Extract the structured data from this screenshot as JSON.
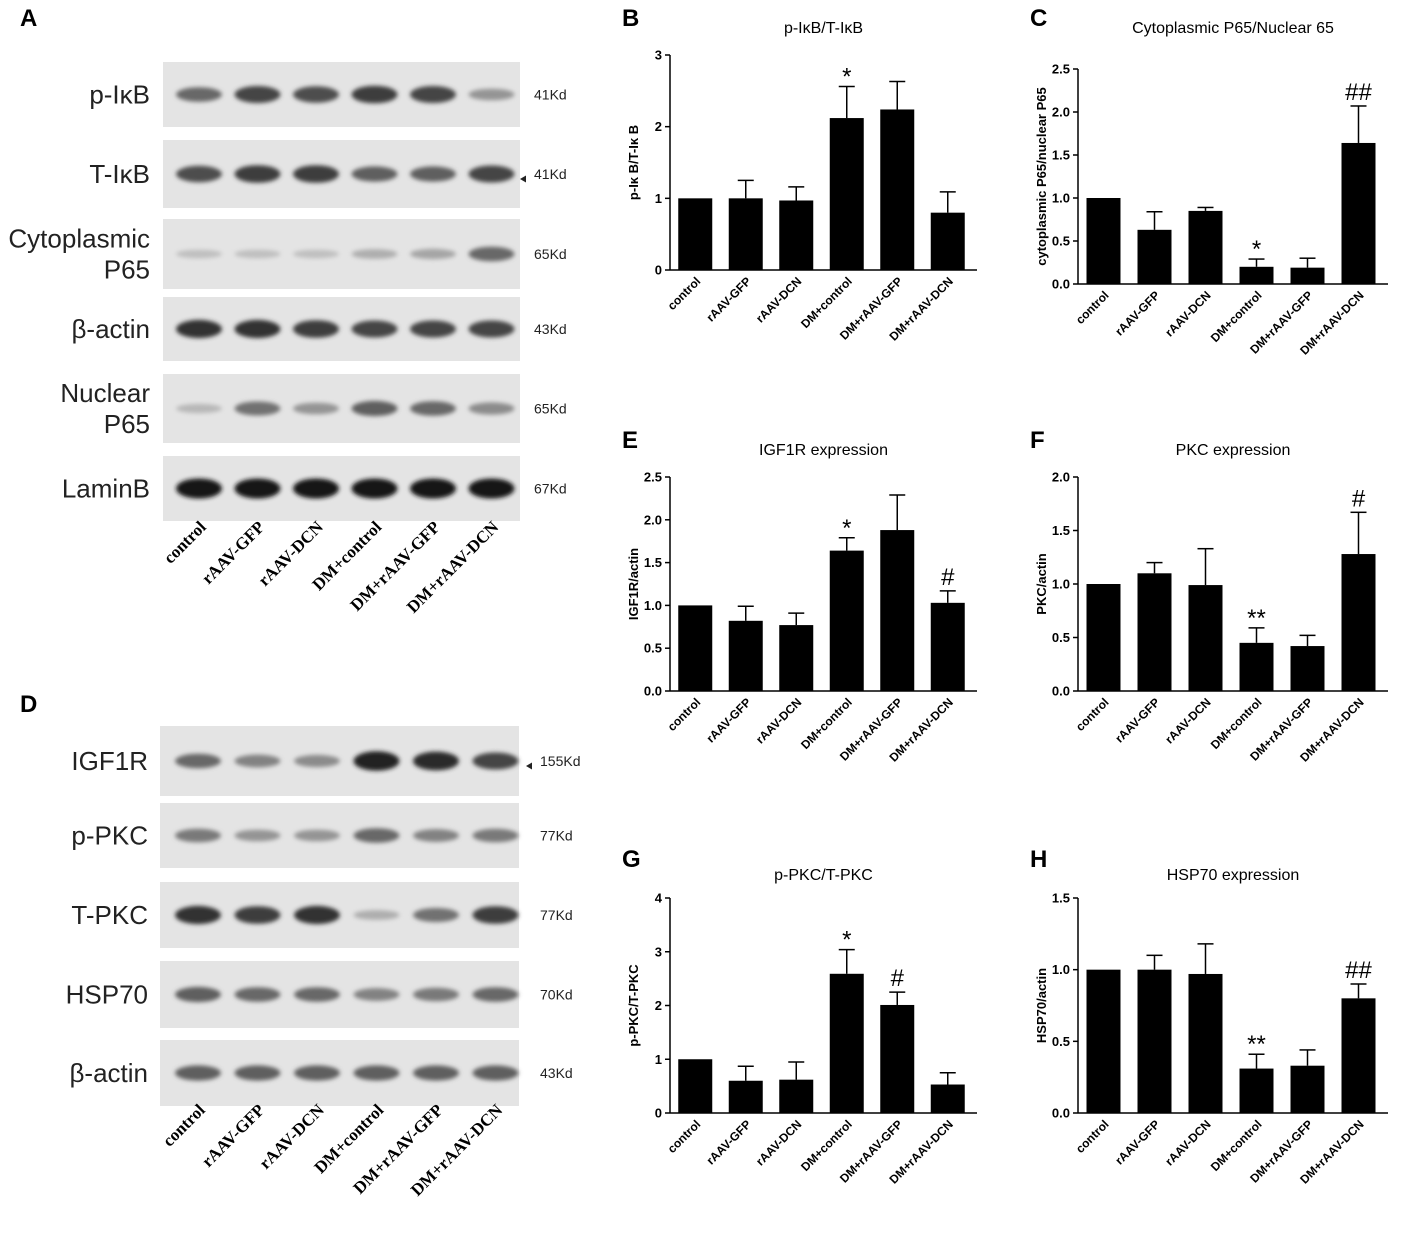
{
  "panel_letters": [
    "A",
    "B",
    "C",
    "D",
    "E",
    "F",
    "G",
    "H"
  ],
  "blots": [
    {
      "panel": "A",
      "lanes": [
        "control",
        "rAAV-GFP",
        "rAAV-DCN",
        "DM+control",
        "DM+rAAV-GFP",
        "DM+rAAV-DCN"
      ],
      "rows": [
        {
          "label_lines": [
            "p-IκB"
          ],
          "kd": "41Kd",
          "arrow": false,
          "bands": [
            0.55,
            0.75,
            0.7,
            0.8,
            0.75,
            0.3
          ]
        },
        {
          "label_lines": [
            "T-IκB"
          ],
          "kd": "41Kd",
          "arrow": true,
          "bands": [
            0.7,
            0.8,
            0.8,
            0.6,
            0.6,
            0.75
          ]
        },
        {
          "label_lines": [
            "Cytoplasmic",
            "P65"
          ],
          "kd": "65Kd",
          "arrow": false,
          "bands": [
            0.05,
            0.05,
            0.05,
            0.15,
            0.2,
            0.55
          ]
        },
        {
          "label_lines": [
            "β-actin"
          ],
          "kd": "43Kd",
          "arrow": false,
          "bands": [
            0.85,
            0.85,
            0.8,
            0.75,
            0.75,
            0.75
          ]
        },
        {
          "label_lines": [
            "Nuclear",
            "P65"
          ],
          "kd": "65Kd",
          "arrow": false,
          "bands": [
            0.1,
            0.5,
            0.3,
            0.6,
            0.55,
            0.35
          ]
        },
        {
          "label_lines": [
            "LaminB"
          ],
          "kd": "67Kd",
          "arrow": false,
          "bands": [
            1.0,
            1.0,
            1.0,
            1.0,
            1.0,
            1.0
          ]
        }
      ]
    },
    {
      "panel": "D",
      "lanes": [
        "control",
        "rAAV-GFP",
        "rAAV-DCN",
        "DM+control",
        "DM+rAAV-GFP",
        "DM+rAAV-DCN"
      ],
      "rows": [
        {
          "label_lines": [
            "IGF1R"
          ],
          "kd": "155Kd",
          "arrow": true,
          "bands": [
            0.55,
            0.4,
            0.35,
            0.95,
            0.9,
            0.75
          ]
        },
        {
          "label_lines": [
            "p-PKC"
          ],
          "kd": "77Kd",
          "arrow": false,
          "bands": [
            0.45,
            0.3,
            0.3,
            0.55,
            0.4,
            0.45
          ]
        },
        {
          "label_lines": [
            "T-PKC"
          ],
          "kd": "77Kd",
          "arrow": false,
          "bands": [
            0.85,
            0.8,
            0.85,
            0.15,
            0.5,
            0.8
          ]
        },
        {
          "label_lines": [
            "HSP70"
          ],
          "kd": "70Kd",
          "arrow": false,
          "bands": [
            0.6,
            0.55,
            0.55,
            0.4,
            0.45,
            0.55
          ]
        },
        {
          "label_lines": [
            "β-actin"
          ],
          "kd": "43Kd",
          "arrow": false,
          "bands": [
            0.6,
            0.6,
            0.6,
            0.6,
            0.6,
            0.6
          ]
        }
      ]
    }
  ],
  "chart_data": [
    {
      "panel": "B",
      "type": "bar",
      "title": "p-IκB/T-IκB",
      "ylabel": "p-Iκ B/T-Iκ B",
      "categories": [
        "control",
        "rAAV-GFP",
        "rAAV-DCN",
        "DM+control",
        "DM+rAAV-GFP",
        "DM+rAAV-DCN"
      ],
      "values": [
        1.0,
        1.0,
        0.97,
        2.12,
        2.24,
        0.8
      ],
      "errors": [
        0,
        0.25,
        0.19,
        0.44,
        0.39,
        0.29
      ],
      "annotations": [
        "",
        "",
        "",
        "*",
        "",
        ""
      ],
      "ylim": [
        0,
        3
      ],
      "yticks": [
        0,
        1,
        2,
        3
      ],
      "ytick_labels": [
        "0",
        "1",
        "2",
        "3"
      ]
    },
    {
      "panel": "C",
      "type": "bar",
      "title": "Cytoplasmic P65/Nuclear 65",
      "ylabel": "cytoplasmic P65/nuclear P65",
      "categories": [
        "control",
        "rAAV-GFP",
        "rAAV-DCN",
        "DM+control",
        "DM+rAAV-GFP",
        "DM+rAAV-DCN"
      ],
      "values": [
        1.0,
        0.63,
        0.85,
        0.2,
        0.19,
        1.64
      ],
      "errors": [
        0,
        0.21,
        0.04,
        0.09,
        0.11,
        0.43
      ],
      "annotations": [
        "",
        "",
        "",
        "*",
        "",
        "##"
      ],
      "ylim": [
        0,
        2.5
      ],
      "yticks": [
        0,
        0.5,
        1.0,
        1.5,
        2.0,
        2.5
      ],
      "ytick_labels": [
        "0.0",
        "0.5",
        "1.0",
        "1.5",
        "2.0",
        "2.5"
      ]
    },
    {
      "panel": "E",
      "type": "bar",
      "title": "IGF1R expression",
      "ylabel": "IGF1R/actin",
      "categories": [
        "control",
        "rAAV-GFP",
        "rAAV-DCN",
        "DM+control",
        "DM+rAAV-GFP",
        "DM+rAAV-DCN"
      ],
      "values": [
        1.0,
        0.82,
        0.77,
        1.64,
        1.88,
        1.03
      ],
      "errors": [
        0,
        0.17,
        0.14,
        0.15,
        0.41,
        0.14
      ],
      "annotations": [
        "",
        "",
        "",
        "*",
        "",
        "#"
      ],
      "ylim": [
        0,
        2.5
      ],
      "yticks": [
        0,
        0.5,
        1.0,
        1.5,
        2.0,
        2.5
      ],
      "ytick_labels": [
        "0.0",
        "0.5",
        "1.0",
        "1.5",
        "2.0",
        "2.5"
      ]
    },
    {
      "panel": "F",
      "type": "bar",
      "title": "PKC expression",
      "ylabel": "PKC/actin",
      "categories": [
        "control",
        "rAAV-GFP",
        "rAAV-DCN",
        "DM+control",
        "DM+rAAV-GFP",
        "DM+rAAV-DCN"
      ],
      "values": [
        1.0,
        1.1,
        0.99,
        0.45,
        0.42,
        1.28
      ],
      "errors": [
        0,
        0.1,
        0.34,
        0.14,
        0.1,
        0.39
      ],
      "annotations": [
        "",
        "",
        "",
        "**",
        "",
        "#"
      ],
      "ylim": [
        0,
        2.0
      ],
      "yticks": [
        0,
        0.5,
        1.0,
        1.5,
        2.0
      ],
      "ytick_labels": [
        "0.0",
        "0.5",
        "1.0",
        "1.5",
        "2.0"
      ]
    },
    {
      "panel": "G",
      "type": "bar",
      "title": "p-PKC/T-PKC",
      "ylabel": "p-PKC/T-PKC",
      "categories": [
        "control",
        "rAAV-GFP",
        "rAAV-DCN",
        "DM+control",
        "DM+rAAV-GFP",
        "DM+rAAV-DCN"
      ],
      "values": [
        1.0,
        0.6,
        0.62,
        2.59,
        2.01,
        0.53
      ],
      "errors": [
        0,
        0.27,
        0.33,
        0.45,
        0.24,
        0.22
      ],
      "annotations": [
        "",
        "",
        "",
        "*",
        "#",
        ""
      ],
      "ylim": [
        0,
        4
      ],
      "yticks": [
        0,
        1,
        2,
        3,
        4
      ],
      "ytick_labels": [
        "0",
        "1",
        "2",
        "3",
        "4"
      ]
    },
    {
      "panel": "H",
      "type": "bar",
      "title": "HSP70 expression",
      "ylabel": "HSP70/actin",
      "categories": [
        "control",
        "rAAV-GFP",
        "rAAV-DCN",
        "DM+control",
        "DM+rAAV-GFP",
        "DM+rAAV-DCN"
      ],
      "values": [
        1.0,
        1.0,
        0.97,
        0.31,
        0.33,
        0.8
      ],
      "errors": [
        0,
        0.1,
        0.21,
        0.1,
        0.11,
        0.1
      ],
      "annotations": [
        "",
        "",
        "",
        "**",
        "",
        "##"
      ],
      "ylim": [
        0,
        1.5
      ],
      "yticks": [
        0,
        0.5,
        1.0,
        1.5
      ],
      "ytick_labels": [
        "0.0",
        "0.5",
        "1.0",
        "1.5"
      ]
    }
  ]
}
